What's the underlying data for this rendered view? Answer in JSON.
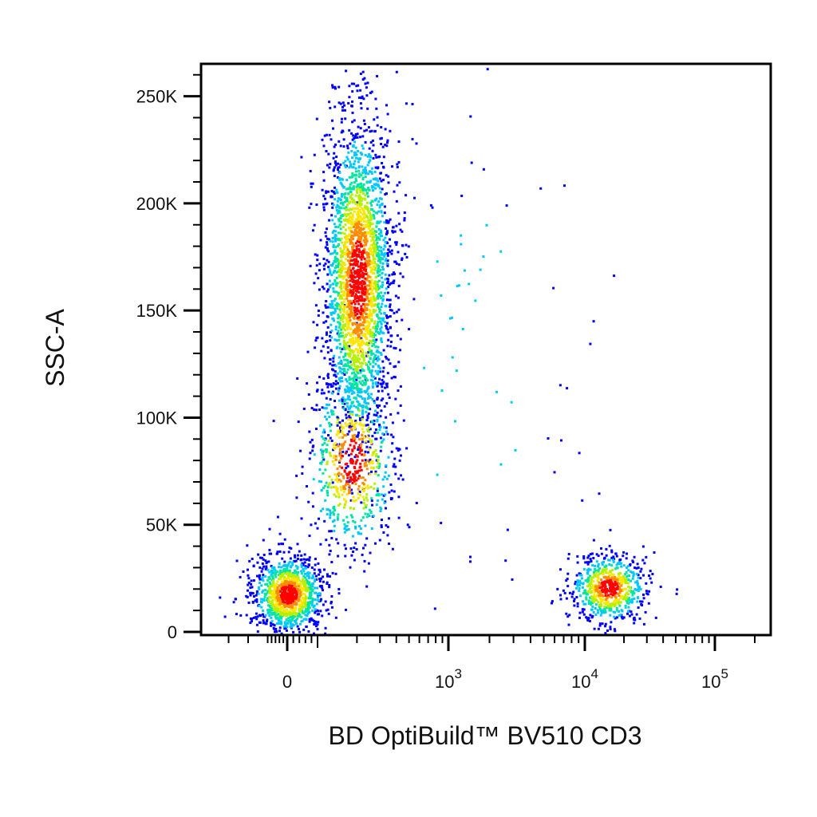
{
  "chart_data": {
    "type": "scatter",
    "subtype": "flow-cytometry density dot plot",
    "xlabel": "BD OptiBuild™ BV510 CD3",
    "ylabel": "SSC-A",
    "x_scale": "biexponential (linear near 0, log above)",
    "y_scale": "linear",
    "ylim": [
      0,
      262144
    ],
    "xlim": [
      -400,
      200000
    ],
    "y_ticks": [
      {
        "value": 0,
        "label": "0"
      },
      {
        "value": 50000,
        "label": "50K"
      },
      {
        "value": 100000,
        "label": "100K"
      },
      {
        "value": 150000,
        "label": "150K"
      },
      {
        "value": 200000,
        "label": "200K"
      },
      {
        "value": 250000,
        "label": "250K"
      }
    ],
    "x_ticks": [
      {
        "value": 0,
        "label_base": "0",
        "label_exp": ""
      },
      {
        "value": 1000,
        "label_base": "10",
        "label_exp": "3"
      },
      {
        "value": 10000,
        "label_base": "10",
        "label_exp": "4"
      },
      {
        "value": 100000,
        "label_base": "10",
        "label_exp": "5"
      }
    ],
    "colormap": [
      "#0000ff",
      "#00c8ff",
      "#00e6a0",
      "#b4f000",
      "#ffe600",
      "#ff8c00",
      "#ff0000"
    ],
    "grid": false,
    "legend": "none",
    "populations": [
      {
        "x_center": 0,
        "y_center": 18000,
        "x_spread": 60,
        "y_spread": 9000,
        "events": 1100
      },
      {
        "x_center": 200,
        "y_center": 165000,
        "x_spread": 70,
        "y_spread": 38000,
        "events": 2600
      },
      {
        "x_center": 180,
        "y_center": 80000,
        "x_spread": 90,
        "y_spread": 22000,
        "events": 650
      },
      {
        "x_center": 15000,
        "y_center": 21000,
        "x_spread": 6000,
        "y_spread": 8000,
        "events": 700
      },
      {
        "x_center": 1500,
        "y_center": 120000,
        "x_spread": 3000,
        "y_spread": 80000,
        "events": 80
      }
    ]
  }
}
